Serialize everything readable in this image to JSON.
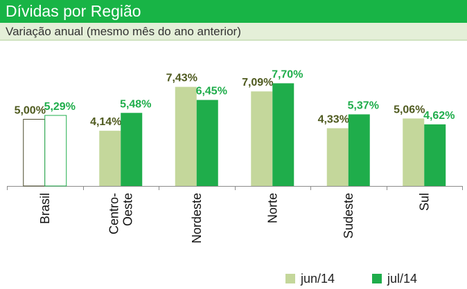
{
  "header": {
    "title": "Dívidas por Região",
    "subtitle": "Variação anual (mesmo mês do ano anterior)"
  },
  "colors": {
    "title_bg": "#18b446",
    "subtitle_bg": "#e4efd8",
    "series_jun": "#c4d79b",
    "series_jul": "#1fad4b",
    "label_jun": "#4f5a1f",
    "label_jul": "#1fad4b"
  },
  "chart_data": {
    "type": "bar",
    "title": "Dívidas por Região",
    "subtitle": "Variação anual (mesmo mês do ano anterior)",
    "categories": [
      "Brasil",
      "Centro-Oeste",
      "Nordeste",
      "Norte",
      "Sudeste",
      "Sul"
    ],
    "category_lines": [
      [
        "Brasil"
      ],
      [
        "Centro-",
        "Oeste"
      ],
      [
        "Nordeste"
      ],
      [
        "Norte"
      ],
      [
        "Sudeste"
      ],
      [
        "Sul"
      ]
    ],
    "series": [
      {
        "name": "jun/14",
        "values": [
          5.0,
          4.14,
          7.43,
          7.09,
          4.33,
          5.06
        ],
        "labels": [
          "5,00%",
          "4,14%",
          "7,43%",
          "7,09%",
          "4,33%",
          "5,06%"
        ]
      },
      {
        "name": "jul/14",
        "values": [
          5.29,
          5.48,
          6.45,
          7.7,
          5.37,
          4.62
        ],
        "labels": [
          "5,29%",
          "5,48%",
          "6,45%",
          "7,70%",
          "5,37%",
          "4,62%"
        ]
      }
    ],
    "highlight_outline_category": "Brasil",
    "ylim": [
      0,
      8.5
    ],
    "grid": false,
    "legend_position": "bottom-right"
  }
}
